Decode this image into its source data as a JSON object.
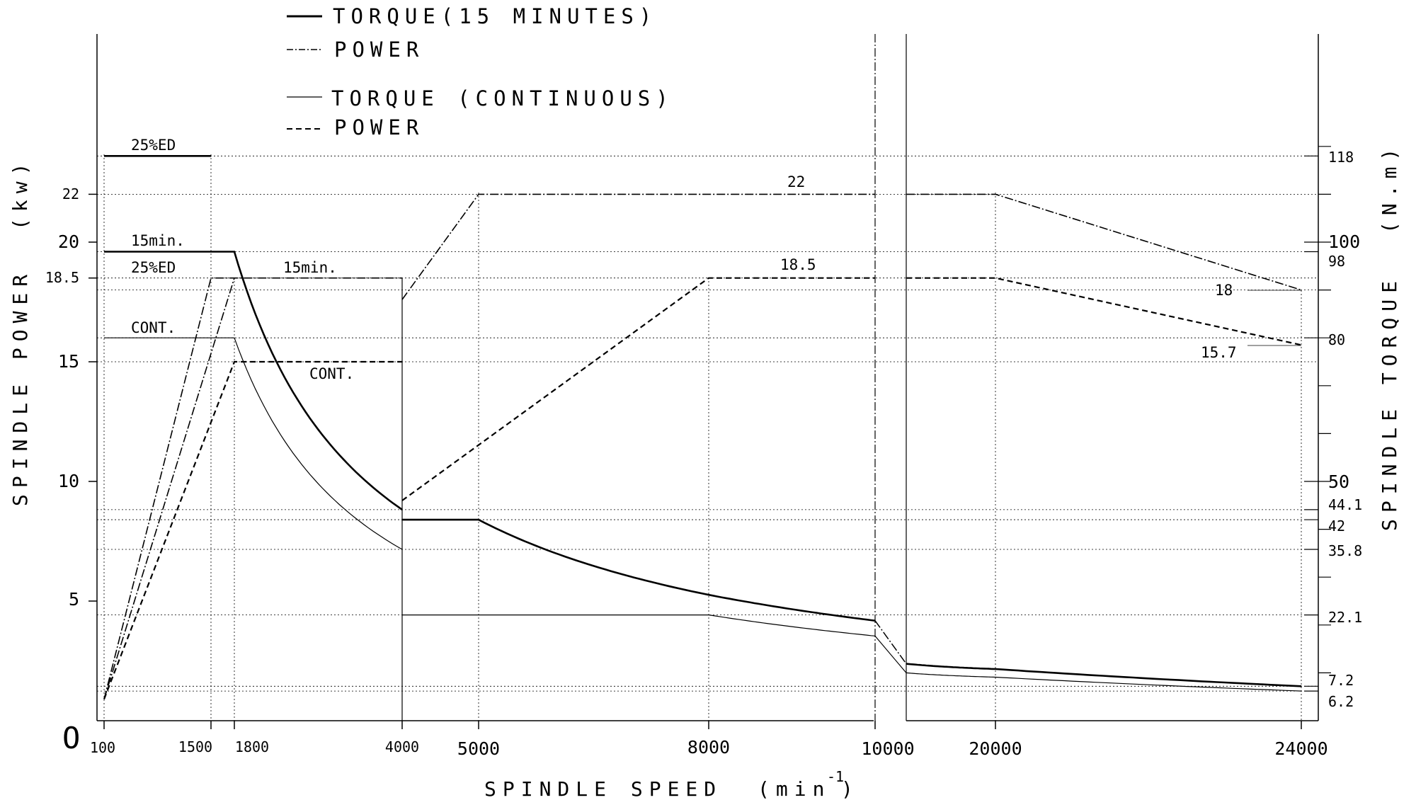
{
  "legend": {
    "torque_15": "TORQUE(15 MINUTES)",
    "power_15": "POWER",
    "torque_cont": "TORQUE (CONTINUOUS)",
    "power_cont": "POWER"
  },
  "axes": {
    "x_title": "SPINDLE SPEED",
    "x_unit": "(min",
    "x_unit_sup": "-1",
    "x_unit_close": ")",
    "y_left_title": "SPINDLE POWER",
    "y_left_unit": "(kw)",
    "y_right_title": "SPINDLE TORQUE",
    "y_right_unit": "(N.m)",
    "origin": "O"
  },
  "annotations": {
    "ed25_top": "25%ED",
    "min15_left": "15min.",
    "ed25_mid": "25%ED",
    "min15_mid": "15min.",
    "cont_left": "CONT.",
    "cont_mid": "CONT.",
    "p22": "22",
    "p185": "18.5",
    "p18": "18",
    "p157": "15.7"
  },
  "chart_data": {
    "type": "line",
    "xlabel": "SPINDLE SPEED (min-1)",
    "ylabel": "SPINDLE POWER (kw)",
    "y2label": "SPINDLE TORQUE (N.m)",
    "x_ticks": [
      "100",
      "1500",
      "1800",
      "4000",
      "5000",
      "8000",
      "10000",
      "20000",
      "24000"
    ],
    "y_left_ticks": [
      "5",
      "10",
      "15",
      "18.5",
      "20",
      "22"
    ],
    "y_right_ticks": [
      "6.2",
      "7.2",
      "22.1",
      "35.8",
      "42",
      "44.1",
      "50",
      "80",
      "98",
      "100",
      "118"
    ],
    "series": [
      {
        "name": "TORQUE(15 MINUTES)",
        "axis": "right",
        "segments": [
          [
            [
              100,
              118
            ],
            [
              1500,
              118
            ]
          ],
          [
            [
              100,
              98
            ],
            [
              1800,
              98
            ],
            [
              4000,
              44.1
            ]
          ],
          [
            [
              4000,
              42
            ],
            [
              5000,
              42
            ],
            [
              8000,
              26.3
            ],
            [
              10000,
              20.9
            ]
          ],
          [
            [
              12000,
              11.9
            ],
            [
              20000,
              10.8
            ],
            [
              24000,
              7.2
            ]
          ]
        ]
      },
      {
        "name": "POWER",
        "axis": "left",
        "segments": [
          [
            [
              100,
              0.9
            ],
            [
              1500,
              18.5
            ],
            [
              4000,
              18.5
            ]
          ],
          [
            [
              100,
              0.9
            ],
            [
              1800,
              18.5
            ]
          ],
          [
            [
              4000,
              17.6
            ],
            [
              5000,
              22
            ],
            [
              10000,
              22
            ]
          ],
          [
            [
              12000,
              22
            ],
            [
              20000,
              22
            ],
            [
              24000,
              18
            ]
          ]
        ]
      },
      {
        "name": "TORQUE (CONTINUOUS)",
        "axis": "right",
        "segments": [
          [
            [
              100,
              80
            ],
            [
              1800,
              80
            ],
            [
              4000,
              35.8
            ]
          ],
          [
            [
              4000,
              22.1
            ],
            [
              8000,
              22.1
            ],
            [
              10000,
              17.7
            ]
          ],
          [
            [
              12000,
              10.0
            ],
            [
              20000,
              9.1
            ],
            [
              24000,
              6.2
            ]
          ]
        ]
      },
      {
        "name": "POWER",
        "axis": "left",
        "segments": [
          [
            [
              100,
              0.9
            ],
            [
              1800,
              15
            ],
            [
              4000,
              15
            ]
          ],
          [
            [
              4000,
              9.2
            ],
            [
              8000,
              18.5
            ],
            [
              10000,
              18.5
            ]
          ],
          [
            [
              12000,
              18.5
            ],
            [
              20000,
              18.5
            ],
            [
              24000,
              15.7
            ]
          ]
        ]
      }
    ]
  }
}
